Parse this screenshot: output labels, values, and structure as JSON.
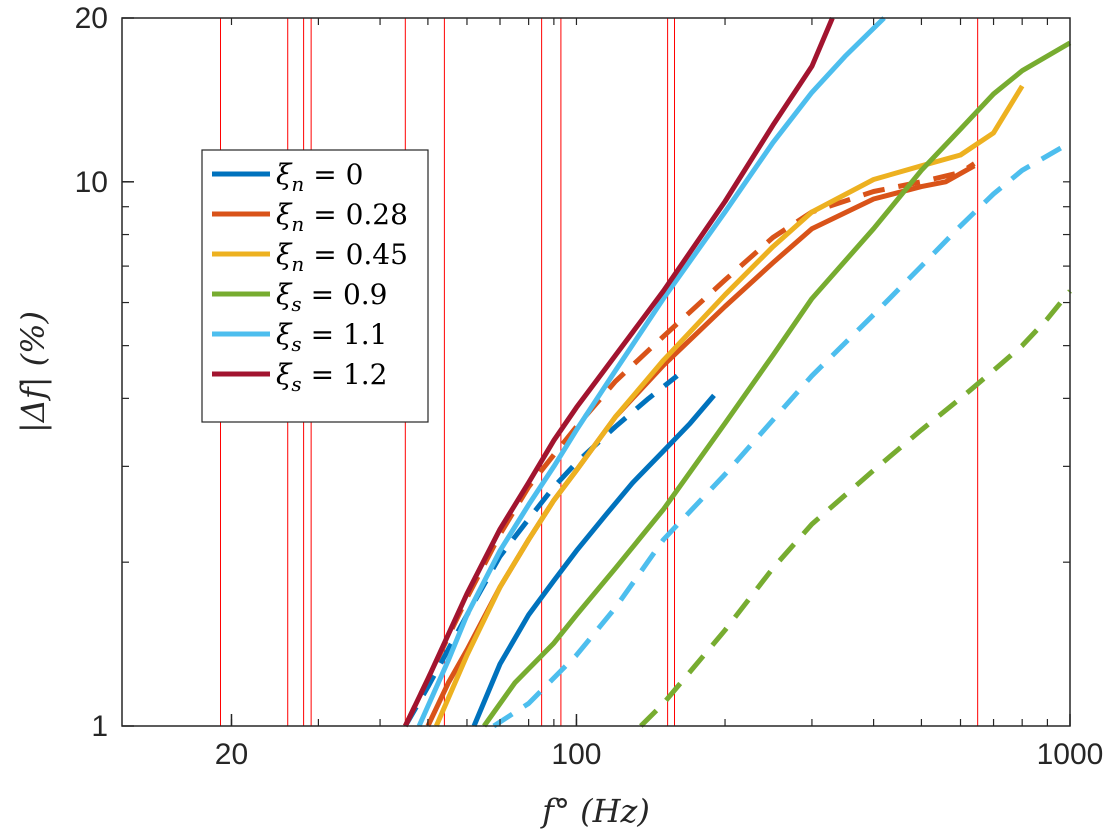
{
  "chart_data": {
    "type": "line",
    "xscale": "log",
    "yscale": "log",
    "xlim": [
      12,
      1000
    ],
    "ylim": [
      1,
      20
    ],
    "xticks": [
      {
        "value": 20,
        "label": "20"
      },
      {
        "value": 100,
        "label": "100"
      },
      {
        "value": 1000,
        "label": "1000"
      }
    ],
    "yticks": [
      {
        "value": 1,
        "label": "1"
      },
      {
        "value": 10,
        "label": "10"
      },
      {
        "value": 20,
        "label": "20"
      }
    ],
    "xlabel": "f° (Hz)",
    "ylabel": "|Δf| (%)",
    "vertical_lines": {
      "color": "#ff0000",
      "x": [
        19,
        26,
        28,
        29,
        45,
        54,
        85,
        93,
        153,
        158,
        650
      ]
    },
    "legend_position": "upper-left",
    "series": [
      {
        "name": "ξn = 0",
        "legend_main": "ξ",
        "legend_sub": "n",
        "legend_val": " = 0",
        "color": "#0072BD",
        "dash": "solid",
        "x": [
          62,
          70,
          80,
          90,
          100,
          115,
          130,
          150,
          170,
          190
        ],
        "y": [
          1.0,
          1.3,
          1.6,
          1.85,
          2.1,
          2.45,
          2.8,
          3.2,
          3.6,
          4.05
        ]
      },
      {
        "name": "ξn = 0 (dashed)",
        "color": "#0072BD",
        "dash": "dashed",
        "x": [
          45,
          50,
          60,
          70,
          80,
          90,
          100,
          120,
          140,
          160
        ],
        "y": [
          1.0,
          1.18,
          1.6,
          2.05,
          2.4,
          2.75,
          3.05,
          3.55,
          4.0,
          4.4
        ]
      },
      {
        "name": "ξn = 0.28",
        "legend_main": "ξ",
        "legend_sub": "n",
        "legend_val": " = 0.28",
        "color": "#D95319",
        "dash": "solid",
        "x": [
          50,
          55,
          60,
          70,
          80,
          90,
          100,
          120,
          150,
          200,
          250,
          300,
          400,
          500,
          560,
          640
        ],
        "y": [
          1.0,
          1.2,
          1.38,
          1.8,
          2.2,
          2.6,
          2.95,
          3.7,
          4.6,
          5.9,
          7.1,
          8.2,
          9.3,
          9.8,
          10.0,
          10.7
        ]
      },
      {
        "name": "ξn = 0.28 (dashed)",
        "color": "#D95319",
        "dash": "dashed",
        "x": [
          45,
          50,
          60,
          70,
          80,
          90,
          100,
          120,
          150,
          200,
          250,
          300,
          400,
          500,
          600,
          640
        ],
        "y": [
          1.0,
          1.22,
          1.72,
          2.25,
          2.75,
          3.15,
          3.55,
          4.3,
          5.2,
          6.6,
          7.9,
          8.8,
          9.6,
          10.0,
          10.4,
          10.8
        ]
      },
      {
        "name": "ξn = 0.45",
        "legend_main": "ξ",
        "legend_sub": "n",
        "legend_val": " = 0.45",
        "color": "#EDB120",
        "dash": "solid",
        "x": [
          52,
          60,
          70,
          80,
          90,
          100,
          120,
          150,
          200,
          250,
          300,
          400,
          500,
          600,
          700,
          800
        ],
        "y": [
          1.0,
          1.35,
          1.8,
          2.2,
          2.6,
          2.95,
          3.7,
          4.7,
          6.2,
          7.6,
          8.8,
          10.1,
          10.7,
          11.2,
          12.3,
          15.0
        ]
      },
      {
        "name": "ξs = 0.9",
        "legend_main": "ξ",
        "legend_sub": "s",
        "legend_val": " = 0.9",
        "color": "#77AC30",
        "dash": "solid",
        "x": [
          65,
          75,
          90,
          100,
          120,
          150,
          200,
          250,
          300,
          400,
          500,
          600,
          700,
          800,
          1000
        ],
        "y": [
          1.0,
          1.2,
          1.42,
          1.6,
          1.95,
          2.5,
          3.6,
          4.8,
          6.1,
          8.2,
          10.5,
          12.5,
          14.5,
          16.0,
          18.0
        ]
      },
      {
        "name": "ξs = 0.9 (dashed)",
        "color": "#77AC30",
        "dash": "dashed",
        "x": [
          135,
          150,
          200,
          250,
          300,
          400,
          500,
          600,
          700,
          800,
          900,
          1000
        ],
        "y": [
          1.0,
          1.1,
          1.5,
          1.95,
          2.35,
          2.95,
          3.5,
          4.0,
          4.5,
          5.0,
          5.6,
          6.3
        ]
      },
      {
        "name": "ξs = 1.1",
        "legend_main": "ξ",
        "legend_sub": "s",
        "legend_val": " = 1.1",
        "color": "#4DBEEE",
        "dash": "solid",
        "x": [
          48,
          55,
          60,
          70,
          80,
          90,
          100,
          120,
          150,
          200,
          250,
          300,
          350,
          420
        ],
        "y": [
          1.0,
          1.32,
          1.6,
          2.1,
          2.55,
          3.0,
          3.5,
          4.5,
          6.1,
          8.8,
          11.8,
          14.6,
          17.0,
          20.0
        ]
      },
      {
        "name": "ξs = 1.1 (dashed)",
        "color": "#4DBEEE",
        "dash": "dashed",
        "x": [
          68,
          80,
          100,
          120,
          150,
          200,
          250,
          300,
          400,
          500,
          600,
          700,
          800,
          1000
        ],
        "y": [
          1.0,
          1.1,
          1.35,
          1.65,
          2.2,
          2.9,
          3.65,
          4.4,
          5.7,
          7.0,
          8.3,
          9.5,
          10.5,
          11.8
        ]
      },
      {
        "name": "ξs = 1.2",
        "legend_main": "ξ",
        "legend_sub": "s",
        "legend_val": " = 1.2",
        "color": "#A2142F",
        "dash": "solid",
        "x": [
          45,
          50,
          60,
          70,
          80,
          90,
          100,
          120,
          150,
          200,
          250,
          300,
          330
        ],
        "y": [
          1.0,
          1.22,
          1.75,
          2.3,
          2.8,
          3.35,
          3.85,
          4.8,
          6.3,
          9.2,
          12.7,
          16.3,
          20.0
        ]
      }
    ]
  }
}
